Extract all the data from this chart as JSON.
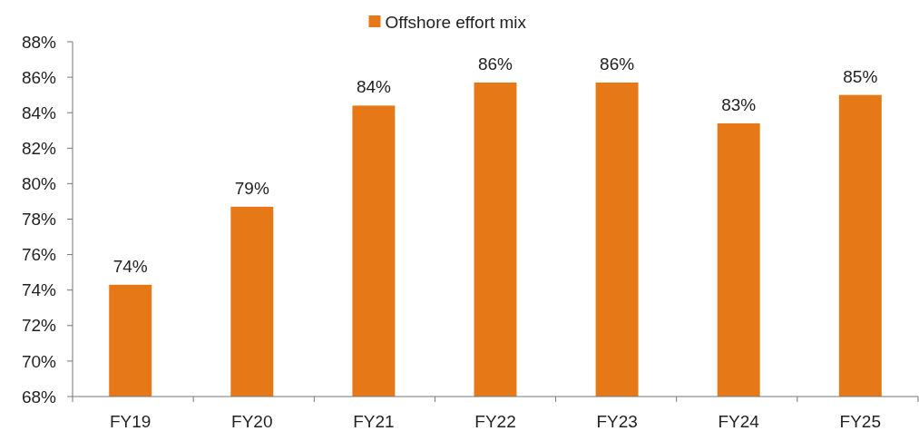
{
  "chart_data": {
    "type": "bar",
    "categories": [
      "FY19",
      "FY20",
      "FY21",
      "FY22",
      "FY23",
      "FY24",
      "FY25"
    ],
    "series": [
      {
        "name": "Offshore effort mix",
        "color": "#e67817",
        "values": [
          74.3,
          78.7,
          84.4,
          85.7,
          85.7,
          83.4,
          85.0
        ],
        "value_labels": [
          "74%",
          "79%",
          "84%",
          "86%",
          "86%",
          "83%",
          "85%"
        ]
      }
    ],
    "ylim": [
      68,
      88
    ],
    "yticks": [
      {
        "value": 68,
        "label": "68%"
      },
      {
        "value": 70,
        "label": "70%"
      },
      {
        "value": 72,
        "label": "72%"
      },
      {
        "value": 74,
        "label": "74%"
      },
      {
        "value": 76,
        "label": "76%"
      },
      {
        "value": 78,
        "label": "78%"
      },
      {
        "value": 80,
        "label": "80%"
      },
      {
        "value": 82,
        "label": "82%"
      },
      {
        "value": 84,
        "label": "84%"
      },
      {
        "value": 86,
        "label": "86%"
      },
      {
        "value": 88,
        "label": "88%"
      }
    ],
    "grid": false,
    "legend": "top"
  }
}
